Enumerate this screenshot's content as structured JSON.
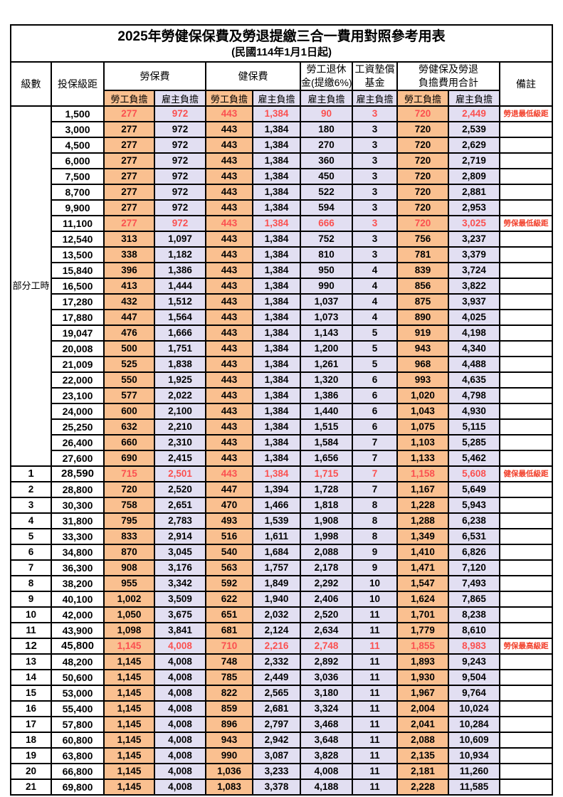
{
  "title": "2025年勞健保保費及勞退提繳三合一費用對照參考用表",
  "subtitle": "(民國114年1月1日起)",
  "part_time_label": "部分工時",
  "colors": {
    "orange_fill": "#FAC090",
    "lavender_fill": "#E2DFF2",
    "red_value": "#FB5050",
    "red_note": "#F2402B"
  },
  "header": {
    "level": "級數",
    "bracket": "投保級距",
    "labor_group": "勞保費",
    "health_group": "健保費",
    "pension_line1": "勞工退休",
    "pension_line2": "金(提繳6%)",
    "wage_fund_line1": "工資墊償",
    "wage_fund_line2": "基金",
    "total_line1": "勞健保及勞退",
    "total_line2": "負擔費用合計",
    "note": "備註",
    "employee": "勞工負擔",
    "employer": "雇主負擔"
  },
  "chart_data": {
    "type": "table",
    "title": "2025年勞健保保費及勞退提繳三合一費用對照參考用表 (民國114年1月1日起)",
    "columns": [
      "級數",
      "投保級距",
      "勞保費-勞工負擔",
      "勞保費-雇主負擔",
      "健保費-勞工負擔",
      "健保費-雇主負擔",
      "勞工退休金(提繳6%)-雇主負擔",
      "工資墊償基金-雇主負擔",
      "合計-勞工負擔",
      "合計-雇主負擔",
      "備註"
    ]
  },
  "rows": [
    {
      "level": "",
      "bracket": "1,500",
      "vals": [
        "277",
        "972",
        "443",
        "1,384",
        "90",
        "3",
        "720",
        "2,449"
      ],
      "note": "勞退最低級距",
      "red": true,
      "bold": false
    },
    {
      "level": "",
      "bracket": "3,000",
      "vals": [
        "277",
        "972",
        "443",
        "1,384",
        "180",
        "3",
        "720",
        "2,539"
      ],
      "note": "",
      "red": false,
      "bold": false
    },
    {
      "level": "",
      "bracket": "4,500",
      "vals": [
        "277",
        "972",
        "443",
        "1,384",
        "270",
        "3",
        "720",
        "2,629"
      ],
      "note": "",
      "red": false,
      "bold": false
    },
    {
      "level": "",
      "bracket": "6,000",
      "vals": [
        "277",
        "972",
        "443",
        "1,384",
        "360",
        "3",
        "720",
        "2,719"
      ],
      "note": "",
      "red": false,
      "bold": false
    },
    {
      "level": "",
      "bracket": "7,500",
      "vals": [
        "277",
        "972",
        "443",
        "1,384",
        "450",
        "3",
        "720",
        "2,809"
      ],
      "note": "",
      "red": false,
      "bold": false
    },
    {
      "level": "",
      "bracket": "8,700",
      "vals": [
        "277",
        "972",
        "443",
        "1,384",
        "522",
        "3",
        "720",
        "2,881"
      ],
      "note": "",
      "red": false,
      "bold": false
    },
    {
      "level": "",
      "bracket": "9,900",
      "vals": [
        "277",
        "972",
        "443",
        "1,384",
        "594",
        "3",
        "720",
        "2,953"
      ],
      "note": "",
      "red": false,
      "bold": false
    },
    {
      "level": "",
      "bracket": "11,100",
      "vals": [
        "277",
        "972",
        "443",
        "1,384",
        "666",
        "3",
        "720",
        "3,025"
      ],
      "note": "勞保最低級距",
      "red": true,
      "bold": false
    },
    {
      "level": "",
      "bracket": "12,540",
      "vals": [
        "313",
        "1,097",
        "443",
        "1,384",
        "752",
        "3",
        "756",
        "3,237"
      ],
      "note": "",
      "red": false,
      "bold": false
    },
    {
      "level": "",
      "bracket": "13,500",
      "vals": [
        "338",
        "1,182",
        "443",
        "1,384",
        "810",
        "3",
        "781",
        "3,379"
      ],
      "note": "",
      "red": false,
      "bold": false
    },
    {
      "level": "",
      "bracket": "15,840",
      "vals": [
        "396",
        "1,386",
        "443",
        "1,384",
        "950",
        "4",
        "839",
        "3,724"
      ],
      "note": "",
      "red": false,
      "bold": false
    },
    {
      "level": "",
      "bracket": "16,500",
      "vals": [
        "413",
        "1,444",
        "443",
        "1,384",
        "990",
        "4",
        "856",
        "3,822"
      ],
      "note": "",
      "red": false,
      "bold": false
    },
    {
      "level": "",
      "bracket": "17,280",
      "vals": [
        "432",
        "1,512",
        "443",
        "1,384",
        "1,037",
        "4",
        "875",
        "3,937"
      ],
      "note": "",
      "red": false,
      "bold": false
    },
    {
      "level": "",
      "bracket": "17,880",
      "vals": [
        "447",
        "1,564",
        "443",
        "1,384",
        "1,073",
        "4",
        "890",
        "4,025"
      ],
      "note": "",
      "red": false,
      "bold": false
    },
    {
      "level": "",
      "bracket": "19,047",
      "vals": [
        "476",
        "1,666",
        "443",
        "1,384",
        "1,143",
        "5",
        "919",
        "4,198"
      ],
      "note": "",
      "red": false,
      "bold": false
    },
    {
      "level": "",
      "bracket": "20,008",
      "vals": [
        "500",
        "1,751",
        "443",
        "1,384",
        "1,200",
        "5",
        "943",
        "4,340"
      ],
      "note": "",
      "red": false,
      "bold": false
    },
    {
      "level": "",
      "bracket": "21,009",
      "vals": [
        "525",
        "1,838",
        "443",
        "1,384",
        "1,261",
        "5",
        "968",
        "4,488"
      ],
      "note": "",
      "red": false,
      "bold": false
    },
    {
      "level": "",
      "bracket": "22,000",
      "vals": [
        "550",
        "1,925",
        "443",
        "1,384",
        "1,320",
        "6",
        "993",
        "4,635"
      ],
      "note": "",
      "red": false,
      "bold": false
    },
    {
      "level": "",
      "bracket": "23,100",
      "vals": [
        "577",
        "2,022",
        "443",
        "1,384",
        "1,386",
        "6",
        "1,020",
        "4,798"
      ],
      "note": "",
      "red": false,
      "bold": false
    },
    {
      "level": "",
      "bracket": "24,000",
      "vals": [
        "600",
        "2,100",
        "443",
        "1,384",
        "1,440",
        "6",
        "1,043",
        "4,930"
      ],
      "note": "",
      "red": false,
      "bold": false
    },
    {
      "level": "",
      "bracket": "25,250",
      "vals": [
        "632",
        "2,210",
        "443",
        "1,384",
        "1,515",
        "6",
        "1,075",
        "5,115"
      ],
      "note": "",
      "red": false,
      "bold": false
    },
    {
      "level": "",
      "bracket": "26,400",
      "vals": [
        "660",
        "2,310",
        "443",
        "1,384",
        "1,584",
        "7",
        "1,103",
        "5,285"
      ],
      "note": "",
      "red": false,
      "bold": false
    },
    {
      "level": "",
      "bracket": "27,600",
      "vals": [
        "690",
        "2,415",
        "443",
        "1,384",
        "1,656",
        "7",
        "1,133",
        "5,462"
      ],
      "note": "",
      "red": false,
      "bold": false
    },
    {
      "level": "1",
      "bracket": "28,590",
      "vals": [
        "715",
        "2,501",
        "443",
        "1,384",
        "1,715",
        "7",
        "1,158",
        "5,608"
      ],
      "note": "健保最低級距",
      "red": true,
      "bold": true
    },
    {
      "level": "2",
      "bracket": "28,800",
      "vals": [
        "720",
        "2,520",
        "447",
        "1,394",
        "1,728",
        "7",
        "1,167",
        "5,649"
      ],
      "note": "",
      "red": false,
      "bold": false
    },
    {
      "level": "3",
      "bracket": "30,300",
      "vals": [
        "758",
        "2,651",
        "470",
        "1,466",
        "1,818",
        "8",
        "1,228",
        "5,943"
      ],
      "note": "",
      "red": false,
      "bold": false
    },
    {
      "level": "4",
      "bracket": "31,800",
      "vals": [
        "795",
        "2,783",
        "493",
        "1,539",
        "1,908",
        "8",
        "1,288",
        "6,238"
      ],
      "note": "",
      "red": false,
      "bold": false
    },
    {
      "level": "5",
      "bracket": "33,300",
      "vals": [
        "833",
        "2,914",
        "516",
        "1,611",
        "1,998",
        "8",
        "1,349",
        "6,531"
      ],
      "note": "",
      "red": false,
      "bold": false
    },
    {
      "level": "6",
      "bracket": "34,800",
      "vals": [
        "870",
        "3,045",
        "540",
        "1,684",
        "2,088",
        "9",
        "1,410",
        "6,826"
      ],
      "note": "",
      "red": false,
      "bold": false
    },
    {
      "level": "7",
      "bracket": "36,300",
      "vals": [
        "908",
        "3,176",
        "563",
        "1,757",
        "2,178",
        "9",
        "1,471",
        "7,120"
      ],
      "note": "",
      "red": false,
      "bold": false
    },
    {
      "level": "8",
      "bracket": "38,200",
      "vals": [
        "955",
        "3,342",
        "592",
        "1,849",
        "2,292",
        "10",
        "1,547",
        "7,493"
      ],
      "note": "",
      "red": false,
      "bold": false
    },
    {
      "level": "9",
      "bracket": "40,100",
      "vals": [
        "1,002",
        "3,509",
        "622",
        "1,940",
        "2,406",
        "10",
        "1,624",
        "7,865"
      ],
      "note": "",
      "red": false,
      "bold": false
    },
    {
      "level": "10",
      "bracket": "42,000",
      "vals": [
        "1,050",
        "3,675",
        "651",
        "2,032",
        "2,520",
        "11",
        "1,701",
        "8,238"
      ],
      "note": "",
      "red": false,
      "bold": false
    },
    {
      "level": "11",
      "bracket": "43,900",
      "vals": [
        "1,098",
        "3,841",
        "681",
        "2,124",
        "2,634",
        "11",
        "1,779",
        "8,610"
      ],
      "note": "",
      "red": false,
      "bold": false
    },
    {
      "level": "12",
      "bracket": "45,800",
      "vals": [
        "1,145",
        "4,008",
        "710",
        "2,216",
        "2,748",
        "11",
        "1,855",
        "8,983"
      ],
      "note": "勞保最高級距",
      "red": true,
      "bold": true
    },
    {
      "level": "13",
      "bracket": "48,200",
      "vals": [
        "1,145",
        "4,008",
        "748",
        "2,332",
        "2,892",
        "11",
        "1,893",
        "9,243"
      ],
      "note": "",
      "red": false,
      "bold": false
    },
    {
      "level": "14",
      "bracket": "50,600",
      "vals": [
        "1,145",
        "4,008",
        "785",
        "2,449",
        "3,036",
        "11",
        "1,930",
        "9,504"
      ],
      "note": "",
      "red": false,
      "bold": false
    },
    {
      "level": "15",
      "bracket": "53,000",
      "vals": [
        "1,145",
        "4,008",
        "822",
        "2,565",
        "3,180",
        "11",
        "1,967",
        "9,764"
      ],
      "note": "",
      "red": false,
      "bold": false
    },
    {
      "level": "16",
      "bracket": "55,400",
      "vals": [
        "1,145",
        "4,008",
        "859",
        "2,681",
        "3,324",
        "11",
        "2,004",
        "10,024"
      ],
      "note": "",
      "red": false,
      "bold": false
    },
    {
      "level": "17",
      "bracket": "57,800",
      "vals": [
        "1,145",
        "4,008",
        "896",
        "2,797",
        "3,468",
        "11",
        "2,041",
        "10,284"
      ],
      "note": "",
      "red": false,
      "bold": false
    },
    {
      "level": "18",
      "bracket": "60,800",
      "vals": [
        "1,145",
        "4,008",
        "943",
        "2,942",
        "3,648",
        "11",
        "2,088",
        "10,609"
      ],
      "note": "",
      "red": false,
      "bold": false
    },
    {
      "level": "19",
      "bracket": "63,800",
      "vals": [
        "1,145",
        "4,008",
        "990",
        "3,087",
        "3,828",
        "11",
        "2,135",
        "10,934"
      ],
      "note": "",
      "red": false,
      "bold": false
    },
    {
      "level": "20",
      "bracket": "66,800",
      "vals": [
        "1,145",
        "4,008",
        "1,036",
        "3,233",
        "4,008",
        "11",
        "2,181",
        "11,260"
      ],
      "note": "",
      "red": false,
      "bold": false
    },
    {
      "level": "21",
      "bracket": "69,800",
      "vals": [
        "1,145",
        "4,008",
        "1,083",
        "3,378",
        "4,188",
        "11",
        "2,228",
        "11,585"
      ],
      "note": "",
      "red": false,
      "bold": false
    }
  ]
}
